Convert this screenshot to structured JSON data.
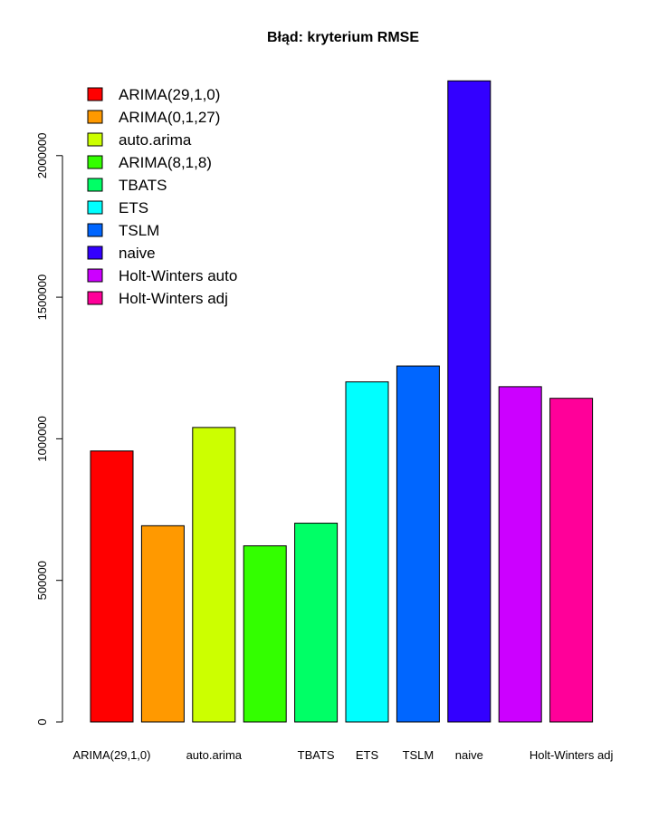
{
  "chart_data": {
    "type": "bar",
    "title": "Błąd: kryterium RMSE",
    "xlabel": "",
    "ylabel": "",
    "categories": [
      "ARIMA(29,1,0)",
      "ARIMA(0,1,27)",
      "auto.arima",
      "ARIMA(8,1,8)",
      "TBATS",
      "ETS",
      "TSLM",
      "naive",
      "Holt-Winters auto",
      "Holt-Winters adj"
    ],
    "visible_category_labels": [
      "ARIMA(29,1,0)",
      "auto.arima",
      "TBATS",
      "ETS",
      "TSLM",
      "naive",
      "Holt-Winters adj"
    ],
    "values": [
      957000,
      693000,
      1040000,
      622000,
      702000,
      1201000,
      1257000,
      2264000,
      1184000,
      1143000
    ],
    "colors": [
      "#FF0000",
      "#FF9900",
      "#CCFF00",
      "#33FF00",
      "#00FF66",
      "#00FFFF",
      "#0066FF",
      "#3300FF",
      "#CC00FF",
      "#FF0099"
    ],
    "ylim": [
      0,
      2300000
    ],
    "yticks": [
      0,
      500000,
      1000000,
      1500000,
      2000000
    ],
    "ytick_labels": [
      "0",
      "500000",
      "1000000",
      "1500000",
      "2000000"
    ],
    "legend": {
      "position": "top-left",
      "entries": [
        "ARIMA(29,1,0)",
        "ARIMA(0,1,27)",
        "auto.arima",
        "ARIMA(8,1,8)",
        "TBATS",
        "ETS",
        "TSLM",
        "naive",
        "Holt-Winters auto",
        "Holt-Winters adj"
      ]
    },
    "grid": false
  }
}
